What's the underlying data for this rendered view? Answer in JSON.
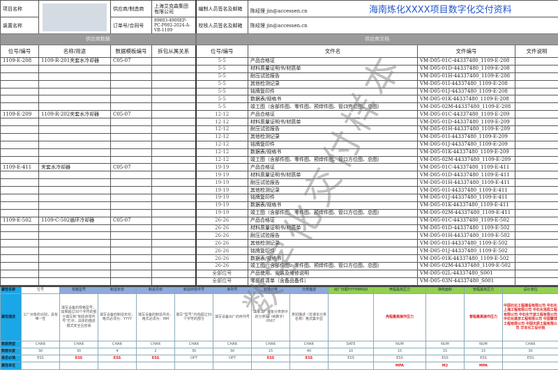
{
  "header": {
    "project_label": "项目名称",
    "device_label": "装置名称",
    "supplier_label": "供应商/制造商",
    "supplier_value": "上海艾克森集团有限公司",
    "order_label": "订单号/合同号",
    "order_value": "89803-4900EP-PC-P002-2024-A-VB-1109",
    "editor_label": "编制人员签名及邮箱",
    "editor_value": "陈经理    jin@accessen.cn",
    "reviewer_label": "校核人员签名及邮箱",
    "reviewer_value": "陈经理    jin@accessen.cn",
    "title": "海南炼化XXXX项目数字化交付资料"
  },
  "bands": {
    "left": "供应商数据",
    "right": "供应商文档"
  },
  "columns": [
    "位号/编号",
    "名称/用途",
    "数据模板编号",
    "拆包从属关系",
    "位号/编号",
    "文件名",
    "文件编号",
    "文件说明"
  ],
  "rows": [
    [
      "1109-E-208",
      "1109-R-201夹套水冷却器",
      "C05-07",
      "",
      "5-5",
      "产品合格证",
      "VM-D05-01C-44337480_1109-E-208",
      ""
    ],
    [
      "",
      "",
      "",
      "",
      "5-5",
      "材料质量证明书/材质单",
      "VM-D05-01D-44337480_1109-E-208",
      ""
    ],
    [
      "",
      "",
      "",
      "",
      "5-5",
      "耐压试验报告",
      "VM-D05-01H-44337480_1109-E-208",
      ""
    ],
    [
      "",
      "",
      "",
      "",
      "5-5",
      "其他检测记录",
      "VM-D05-01I-44337480_1109-E-208",
      ""
    ],
    [
      "",
      "",
      "",
      "",
      "5-5",
      "铭牌复印件",
      "VM-D05-01J-44337480_1109-E-208",
      ""
    ],
    [
      "",
      "",
      "",
      "",
      "5-5",
      "数据表/规格书",
      "VM-D05-01K-44337480_1109-E-208",
      ""
    ],
    [
      "",
      "",
      "",
      "",
      "5-5",
      "竣工图（含部件图、零件图、预焊件图、管口方位图、总图）",
      "VM-D05-02M-44337480_1109-E-208",
      ""
    ],
    [
      "1109-E-209",
      "1109-R-202夹套水冷却器",
      "C05-07",
      "",
      "12-12",
      "产品合格证",
      "VM-D05-01C-44337480_1109-E-209",
      ""
    ],
    [
      "",
      "",
      "",
      "",
      "12-12",
      "材料质量证明书/材质单",
      "VM-D05-01D-44337480_1109-E-209",
      ""
    ],
    [
      "",
      "",
      "",
      "",
      "12-12",
      "耐压试验报告",
      "VM-D05-01H-44337480_1109-E-209",
      ""
    ],
    [
      "",
      "",
      "",
      "",
      "12-12",
      "其他检测记录",
      "VM-D05-01I-44337480_1109-E-209",
      ""
    ],
    [
      "",
      "",
      "",
      "",
      "12-12",
      "铭牌复印件",
      "VM-D05-01J-44337480_1109-E-209",
      ""
    ],
    [
      "",
      "",
      "",
      "",
      "12-12",
      "数据表/规格书",
      "VM-D05-01K-44337480_1109-E-209",
      ""
    ],
    [
      "",
      "",
      "",
      "",
      "12-12",
      "竣工图（含部件图、零件图、预焊件图、管口方位图、总图）",
      "VM-D05-02M-44337480_1109-E-209",
      ""
    ],
    [
      "1109-E-411",
      "夹套水冷却器",
      "C05-07",
      "",
      "19-19",
      "产品合格证",
      "VM-D05-01C-44337480_1109-E-411",
      ""
    ],
    [
      "",
      "",
      "",
      "",
      "19-19",
      "材料质量证明书/材质单",
      "VM-D05-01D-44337480_1109-E-411",
      ""
    ],
    [
      "",
      "",
      "",
      "",
      "19-19",
      "耐压试验报告",
      "VM-D05-01H-44337480_1109-E-411",
      ""
    ],
    [
      "",
      "",
      "",
      "",
      "19-19",
      "其他检测记录",
      "VM-D05-01I-44337480_1109-E-411",
      ""
    ],
    [
      "",
      "",
      "",
      "",
      "19-19",
      "铭牌复印件",
      "VM-D05-01J-44337480_1109-E-411",
      ""
    ],
    [
      "",
      "",
      "",
      "",
      "19-19",
      "数据表/规格书",
      "VM-D05-01K-44337480_1109-E-411",
      ""
    ],
    [
      "",
      "",
      "",
      "",
      "19-19",
      "竣工图（含部件图、零件图、预焊件图、管口方位图、总图）",
      "VM-D05-02M-44337480_1109-E-411",
      ""
    ],
    [
      "1109-E-502",
      "1109-C-502循环冷却器",
      "C05-07",
      "",
      "26-26",
      "产品合格证",
      "VM-D05-01C-44337480_1109-E-502",
      ""
    ],
    [
      "",
      "",
      "",
      "",
      "26-26",
      "材料质量证明书/材质单",
      "VM-D05-01D-44337480_1109-E-502",
      ""
    ],
    [
      "",
      "",
      "",
      "",
      "26-26",
      "耐压试验报告",
      "VM-D05-01H-44337480_1109-E-502",
      ""
    ],
    [
      "",
      "",
      "",
      "",
      "26-26",
      "其他检测记录",
      "VM-D05-01I-44337480_1109-E-502",
      ""
    ],
    [
      "",
      "",
      "",
      "",
      "26-26",
      "铭牌复印件",
      "VM-D05-01J-44337480_1109-E-502",
      ""
    ],
    [
      "",
      "",
      "",
      "",
      "26-26",
      "数据表/规格书",
      "VM-D05-01K-44337480_1109-E-502",
      ""
    ],
    [
      "",
      "",
      "",
      "",
      "26-26",
      "竣工图（含部件图、零件图、预焊件图、管口方位图、总图）",
      "VM-D05-02M-44337480_1109-E-502",
      ""
    ],
    [
      "",
      "",
      "",
      "",
      "全部位号",
      "产品使用、安装及维修说明",
      "VM-D05-02L-44337480_S001",
      ""
    ],
    [
      "",
      "",
      "",
      "",
      "全部位号",
      "零部件清单（含备品备件）",
      "VM-D05-03N-44337480_S001",
      ""
    ]
  ],
  "attributes": {
    "row_labels": [
      "属性名称",
      "属性描述",
      "数据类型",
      "数据长度",
      "是否必填",
      "属性单位"
    ],
    "columns": [
      {
        "name": "位号",
        "desc": "工厂对象的识别，具有唯一性",
        "type": "CHAR",
        "length": "30",
        "required": "ESS",
        "unit": "",
        "header_color": "white"
      },
      {
        "name": "规格型号",
        "desc": "填写设备的规格型号，如果超过30个字符的部分填写到“制造商零件号”栏中，具体的描述模式安全且容易",
        "type": "CHAR",
        "length": "30",
        "required": "ESS",
        "unit": "",
        "header_color": "blue",
        "req_red": true
      },
      {
        "name": "制造年份",
        "desc": "填写设备的制造年份，格式必须为：YYYY",
        "type": "CHAR",
        "length": "4",
        "required": "ESS",
        "unit": "",
        "header_color": "blue",
        "req_red": true
      },
      {
        "name": "制造月份",
        "desc": "填写设备的制造月份，格式必须为：MM",
        "type": "CHAR",
        "length": "2",
        "required": "ESS",
        "unit": "",
        "header_color": "blue",
        "req_red": true
      },
      {
        "name": "制造商零件号",
        "desc": "填写“型号”内容超过30个字符的部分",
        "type": "CHAR",
        "length": "30",
        "required": "OPT",
        "unit": "",
        "header_color": "blue"
      },
      {
        "name": "序列号",
        "desc": "填写设备出厂的序列号",
        "type": "CHAR",
        "length": "30",
        "required": "OPT",
        "unit": "",
        "header_color": "blue"
      },
      {
        "name": "标准分类",
        "desc": "填写工厂对象分类表中的分类码（纯数字）0567",
        "type": "CHAR",
        "length": "15",
        "required": "ESS",
        "unit": "",
        "header_color": "blue",
        "req_red": true
      },
      {
        "name": "分类描述",
        "desc": "类别描述（非课本分类名称）格式集中显",
        "type": "CHAR",
        "length": "40",
        "required": "ESS",
        "unit": "",
        "header_color": "blue",
        "req_red": true
      },
      {
        "name": "出厂日期YYYYMMDD",
        "desc": "",
        "type": "DATE",
        "length": "10",
        "required": "ESS",
        "unit": "",
        "header_color": "green"
      },
      {
        "name": "壳程最高压力",
        "desc": "壳程最高操作压力",
        "type": "NUM",
        "length": "15",
        "required": "ESS",
        "unit": "MPA",
        "header_color": "green",
        "desc_red": true
      },
      {
        "name": "换热面积",
        "desc": "",
        "type": "NUM",
        "length": "15",
        "required": "ESS",
        "unit": "M2",
        "header_color": "green"
      },
      {
        "name": "管程最高压力",
        "desc": "管程最高操作压力",
        "type": "NUM",
        "length": "15",
        "required": "ESS",
        "unit": "MPA",
        "header_color": "green",
        "desc_red": true
      },
      {
        "name": "设计单位",
        "desc": "中国石化工程建设有限公司 中石化上海工程有限公司 中石化洛阳工程有限公司 中石化宁波工程有限公司 中石化南京工程有限公司 中国寰球工程有限公司 中国天辰工程有限公司 华东化工设计院",
        "type": "CHAR",
        "length": "30",
        "required": "ESS",
        "unit": "",
        "header_color": "green",
        "desc_red": true
      }
    ]
  },
  "watermark": "数字化交付样本",
  "colors": {
    "title": "#2255cc",
    "band": "#9a9a9a",
    "attr_label": "#1aa7e8",
    "attr_blue": "#8eaadb",
    "attr_green": "#92d050",
    "required_red": "#e02020"
  }
}
